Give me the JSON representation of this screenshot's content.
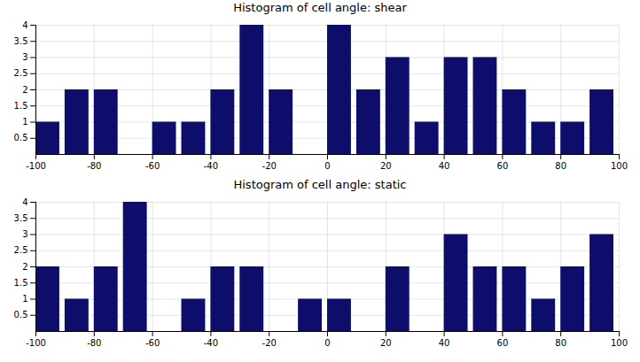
{
  "chart_data": [
    {
      "type": "histogram",
      "title": "Histogram of cell angle: shear",
      "bins": [
        -100,
        -90,
        -80,
        -70,
        -60,
        -50,
        -40,
        -30,
        -20,
        -10,
        0,
        10,
        20,
        30,
        40,
        50,
        60,
        70,
        80,
        90,
        100
      ],
      "counts": [
        1,
        2,
        2,
        0,
        1,
        1,
        2,
        4,
        2,
        0,
        4,
        2,
        3,
        1,
        3,
        3,
        2,
        1,
        1,
        2
      ],
      "color": "#0d0d6b",
      "xlim": [
        -100,
        100
      ],
      "xticks": [
        -100,
        -80,
        -60,
        -40,
        -20,
        0,
        20,
        40,
        60,
        80,
        100
      ],
      "ylim": [
        0,
        4
      ],
      "yticks": [
        0.5,
        1,
        1.5,
        2,
        2.5,
        3,
        3.5,
        4
      ],
      "grid": true
    },
    {
      "type": "histogram",
      "title": "Histogram of cell angle: static",
      "bins": [
        -100,
        -90,
        -80,
        -70,
        -60,
        -50,
        -40,
        -30,
        -20,
        -10,
        0,
        10,
        20,
        30,
        40,
        50,
        60,
        70,
        80,
        90,
        100
      ],
      "counts": [
        2,
        1,
        2,
        4,
        0,
        1,
        2,
        2,
        0,
        1,
        1,
        0,
        2,
        0,
        3,
        2,
        2,
        1,
        2,
        3
      ],
      "color": "#0d0d6b",
      "xlim": [
        -100,
        100
      ],
      "xticks": [
        -100,
        -80,
        -60,
        -40,
        -20,
        0,
        20,
        40,
        60,
        80,
        100
      ],
      "ylim": [
        0,
        4
      ],
      "yticks": [
        0.5,
        1,
        1.5,
        2,
        2.5,
        3,
        3.5,
        4
      ],
      "grid": true
    }
  ]
}
